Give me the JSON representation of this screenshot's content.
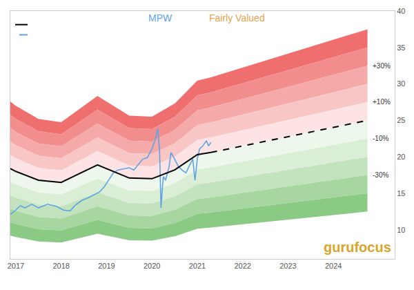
{
  "chart_data": {
    "type": "line",
    "title": "MPW",
    "subtitle": "Fairly Valued",
    "watermark": "gurufocus",
    "xlim": [
      2016.88,
      2025.35
    ],
    "xticks": [
      2017,
      2018,
      2019,
      2020,
      2021,
      2022,
      2023,
      2024
    ],
    "ylim": [
      6,
      40
    ],
    "yticks": [
      10,
      15,
      20,
      25,
      30,
      35,
      40
    ],
    "grid": false,
    "series": [
      {
        "name": "MPW",
        "type": "line",
        "color": "#5ea3e6",
        "x": [
          2016.88,
          2017.0,
          2017.1,
          2017.2,
          2017.35,
          2017.5,
          2017.7,
          2017.9,
          2018.05,
          2018.2,
          2018.3,
          2018.45,
          2018.6,
          2018.75,
          2018.85,
          2018.95,
          2019.05,
          2019.15,
          2019.25,
          2019.4,
          2019.5,
          2019.6,
          2019.7,
          2019.8,
          2019.9,
          2020.0,
          2020.08,
          2020.13,
          2020.17,
          2020.2,
          2020.25,
          2020.3,
          2020.38,
          2020.42,
          2020.5,
          2020.58,
          2020.66,
          2020.75,
          2020.82,
          2020.9,
          2020.95,
          2021.0,
          2021.05,
          2021.12,
          2021.2,
          2021.25,
          2021.3
        ],
        "values": [
          12.1,
          12.7,
          13.3,
          13.0,
          13.5,
          13.0,
          13.5,
          13.2,
          12.7,
          12.6,
          13.3,
          14.0,
          14.4,
          14.9,
          15.2,
          15.9,
          16.8,
          17.8,
          18.2,
          18.4,
          18.5,
          18.2,
          19.0,
          19.7,
          19.9,
          21.1,
          22.5,
          23.9,
          20.6,
          13.0,
          17.3,
          16.8,
          18.7,
          20.6,
          19.7,
          18.7,
          18.2,
          17.8,
          18.7,
          19.7,
          16.8,
          19.7,
          21.1,
          21.5,
          22.2,
          21.5,
          22.0
        ]
      },
      {
        "type": "line",
        "color": "#000000",
        "line_style": "solid",
        "x": [
          2016.88,
          2017.0,
          2017.5,
          2018.0,
          2018.8,
          2019.5,
          2020.0,
          2020.5,
          2021.0,
          2021.3
        ],
        "values": [
          18.4,
          18.0,
          16.8,
          16.5,
          18.9,
          17.1,
          17.0,
          18.2,
          20.3,
          20.6
        ]
      },
      {
        "type": "line",
        "color": "#000000",
        "line_style": "dashed",
        "x": [
          2021.3,
          2024.75
        ],
        "values": [
          20.6,
          25.0
        ]
      }
    ],
    "bands": {
      "levels": [
        50,
        40,
        30,
        20,
        10,
        0,
        -10,
        -20,
        -30,
        -40,
        -50
      ],
      "colors": [
        "#ef6f6f",
        "#f28d8d",
        "#f5a9a9",
        "#f9c6c6",
        "#fde3e3",
        "#eef7ec",
        "#d9eed5",
        "#c2e3bd",
        "#a7d6a0",
        "#8bca84"
      ],
      "labels": [
        {
          "value": 30,
          "label": "+30%"
        },
        {
          "value": 10,
          "label": "+10%"
        },
        {
          "value": -10,
          "label": "-10%"
        },
        {
          "value": -30,
          "label": "-30%"
        }
      ]
    }
  }
}
